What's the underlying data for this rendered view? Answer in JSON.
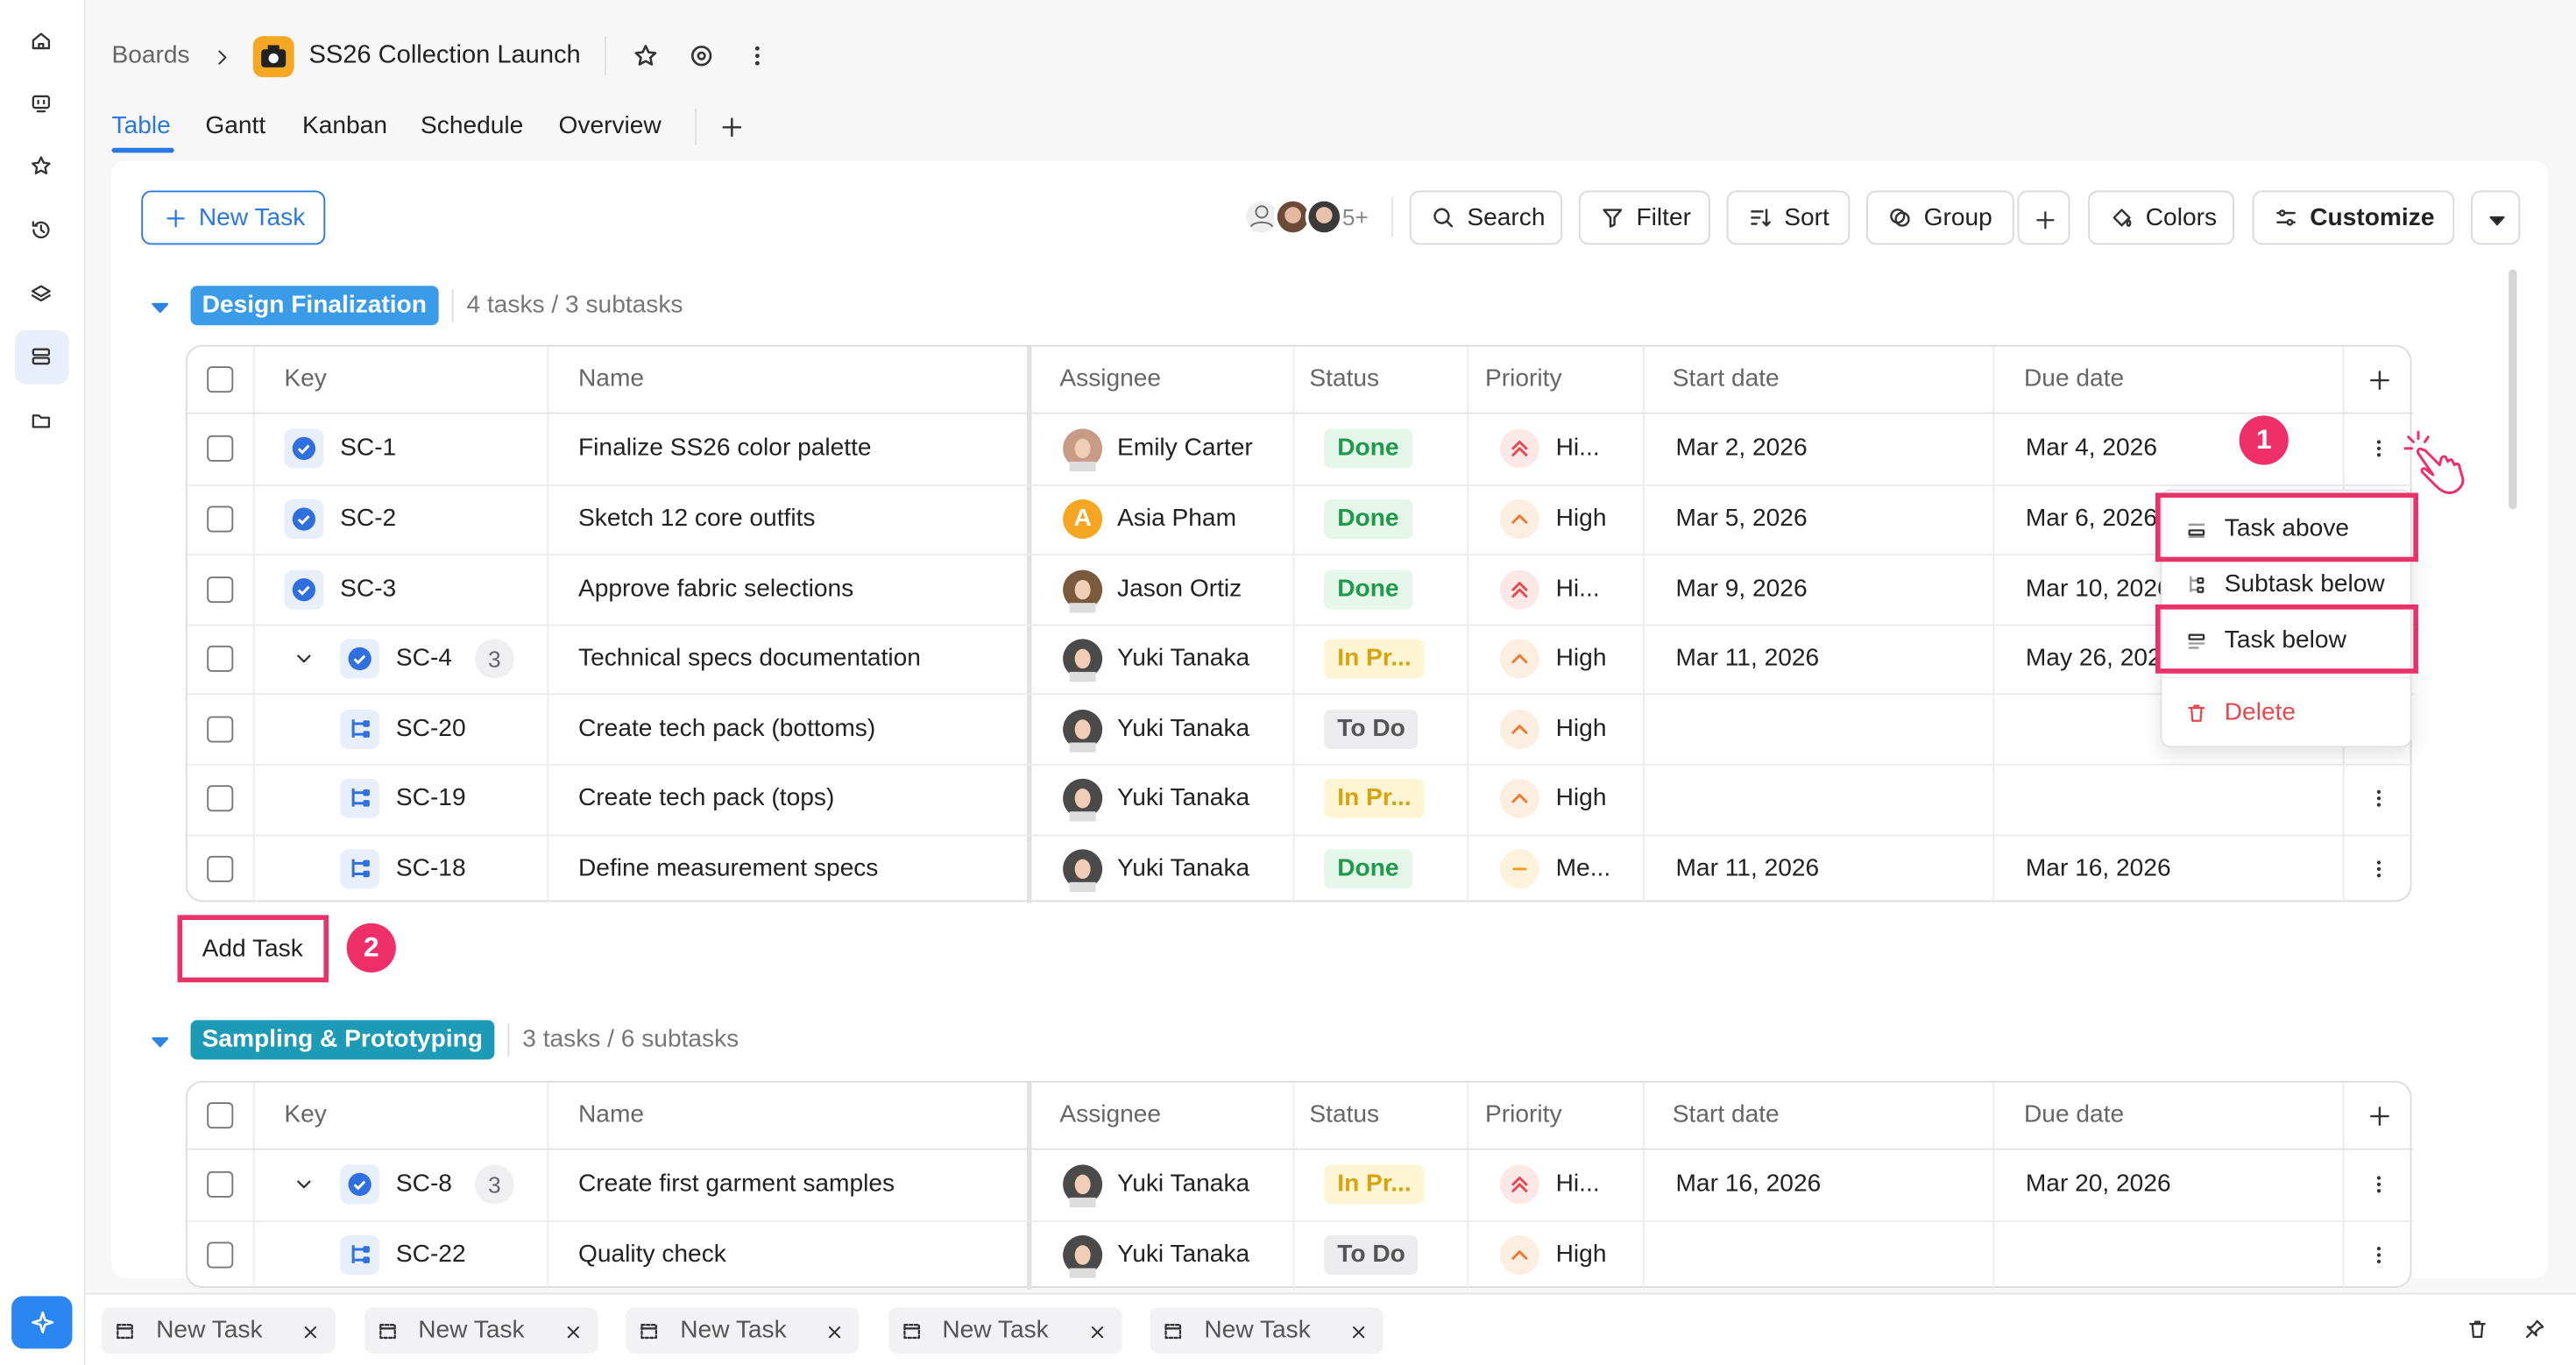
{
  "header": {
    "breadcrumb": "Boards",
    "title": "SS26 Collection Launch"
  },
  "tabs": [
    "Table",
    "Gantt",
    "Kanban",
    "Schedule",
    "Overview"
  ],
  "active_tab": 0,
  "toolbar": {
    "new_task": "New Task",
    "avatar_more": "5+",
    "search": "Search",
    "filter": "Filter",
    "sort": "Sort",
    "group": "Group",
    "colors": "Colors",
    "customize": "Customize"
  },
  "columns": [
    "Key",
    "Name",
    "Assignee",
    "Status",
    "Priority",
    "Start date",
    "Due date"
  ],
  "groups": [
    {
      "name": "Design Finalization",
      "color": "#3a9be8",
      "summary": "4 tasks / 3 subtasks",
      "rows": [
        {
          "key": "SC-1",
          "level": 0,
          "name": "Finalize SS26 color palette",
          "assignee": "Emily Carter",
          "avatar_color": "#c89b86",
          "status": "Done",
          "status_tone": "green",
          "priority": "Hi...",
          "priority_icon": "double",
          "start": "Mar 2, 2026",
          "due": "Mar 4, 2026"
        },
        {
          "key": "SC-2",
          "level": 0,
          "name": "Sketch 12 core outfits",
          "assignee": "Asia Pham",
          "avatar_letter": "A",
          "avatar_color": "#f5a623",
          "status": "Done",
          "status_tone": "green",
          "priority": "High",
          "priority_icon": "single",
          "start": "Mar 5, 2026",
          "due": "Mar 6, 2026"
        },
        {
          "key": "SC-3",
          "level": 0,
          "name": "Approve fabric selections",
          "assignee": "Jason Ortiz",
          "avatar_color": "#7a5a3c",
          "status": "Done",
          "status_tone": "green",
          "priority": "Hi...",
          "priority_icon": "double",
          "start": "Mar 9, 2026",
          "due": "Mar 10, 2026"
        },
        {
          "key": "SC-4",
          "level": 0,
          "subtasks": "3",
          "name": "Technical specs documentation",
          "assignee": "Yuki Tanaka",
          "avatar_color": "#4a4a4a",
          "status": "In Pr...",
          "status_tone": "yellow",
          "priority": "High",
          "priority_icon": "single",
          "start": "Mar 11, 2026",
          "due": "May 26, 2026"
        },
        {
          "key": "SC-20",
          "level": 1,
          "name": "Create tech pack (bottoms)",
          "assignee": "Yuki Tanaka",
          "avatar_color": "#4a4a4a",
          "status": "To Do",
          "status_tone": "gray",
          "priority": "High",
          "priority_icon": "single"
        },
        {
          "key": "SC-19",
          "level": 1,
          "name": "Create tech pack (tops)",
          "assignee": "Yuki Tanaka",
          "avatar_color": "#4a4a4a",
          "status": "In Pr...",
          "status_tone": "yellow",
          "priority": "High",
          "priority_icon": "single"
        },
        {
          "key": "SC-18",
          "level": 1,
          "name": "Define measurement specs",
          "assignee": "Yuki Tanaka",
          "avatar_color": "#4a4a4a",
          "status": "Done",
          "status_tone": "green",
          "priority": "Me...",
          "priority_icon": "dash",
          "start": "Mar 11, 2026",
          "due": "Mar 16, 2026"
        }
      ]
    },
    {
      "name": "Sampling & Prototyping",
      "color": "#1d9bb6",
      "summary": "3 tasks / 6 subtasks",
      "rows": [
        {
          "key": "SC-8",
          "level": 0,
          "subtasks": "3",
          "name": "Create first garment samples",
          "assignee": "Yuki Tanaka",
          "avatar_color": "#4a4a4a",
          "status": "In Pr...",
          "status_tone": "yellow",
          "priority": "Hi...",
          "priority_icon": "double",
          "start": "Mar 16, 2026",
          "due": "Mar 20, 2026"
        },
        {
          "key": "SC-22",
          "level": 1,
          "name": "Quality check",
          "assignee": "Yuki Tanaka",
          "avatar_color": "#4a4a4a",
          "status": "To Do",
          "status_tone": "gray",
          "priority": "High",
          "priority_icon": "single"
        }
      ]
    }
  ],
  "add_task": "Add Task",
  "context_menu": [
    {
      "label": "Task above",
      "highlight": true
    },
    {
      "label": "Subtask below",
      "highlight": false
    },
    {
      "label": "Task below",
      "highlight": true
    },
    {
      "label": "Delete",
      "danger": true,
      "highlight": false
    }
  ],
  "step_badges": [
    "1",
    "2"
  ],
  "bottom_tabs": [
    "New Task",
    "New Task",
    "New Task",
    "New Task",
    "New Task"
  ]
}
